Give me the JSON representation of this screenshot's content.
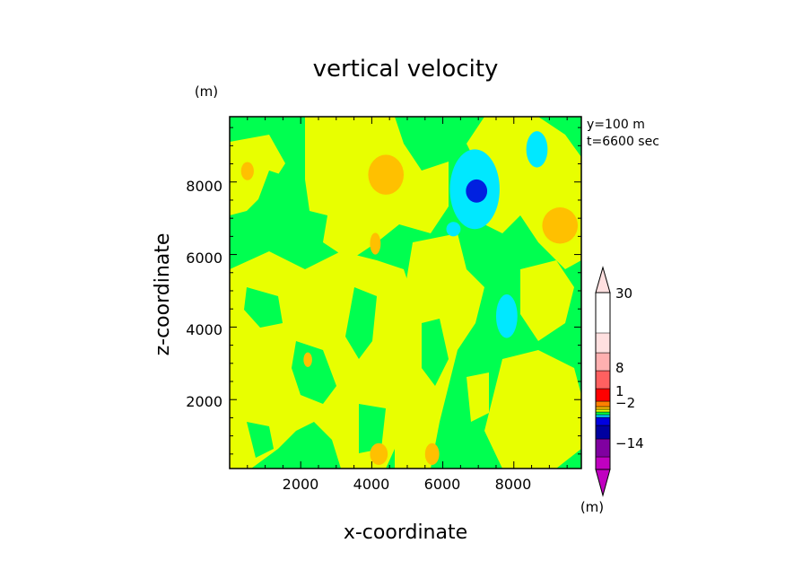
{
  "chart_data": {
    "type": "heatmap",
    "title": "vertical velocity",
    "xlabel": "x-coordinate",
    "ylabel": "z-coordinate",
    "x_unit": "(m)",
    "y_unit": "(m)",
    "annotation_lines": [
      "y=100 m",
      "t=6600 sec"
    ],
    "xlim": [
      0,
      9900
    ],
    "ylim": [
      100,
      9800
    ],
    "x_ticks": [
      "2000",
      "4000",
      "6000",
      "8000"
    ],
    "y_ticks": [
      "2000",
      "4000",
      "6000",
      "8000"
    ],
    "colorbar": {
      "unit": "(m)",
      "labels": [
        "30",
        "8",
        "1",
        "−2",
        "−14"
      ],
      "colors": [
        "#c000c0",
        "#8000a0",
        "#0000a0",
        "#0000e0",
        "#00d0ff",
        "#00ff40",
        "#e0ff00",
        "#ffc000",
        "#ff8000",
        "#ff0000",
        "#ff6060",
        "#ffb0b0",
        "#ffe0e0"
      ]
    },
    "field_colors": {
      "up_weak": "#e8ff00",
      "down_weak": "#00ff50",
      "up_moderate": "#ffc000",
      "down_moderate": "#00e8ff",
      "down_strong": "#0020e0"
    },
    "regions": [
      {
        "level": "up_moderate",
        "center": [
          500,
          8300
        ],
        "radius": [
          180,
          250
        ]
      },
      {
        "level": "up_moderate",
        "center": [
          4400,
          8200
        ],
        "radius": [
          500,
          550
        ]
      },
      {
        "level": "up_moderate",
        "center": [
          9300,
          6800
        ],
        "radius": [
          500,
          500
        ]
      },
      {
        "level": "up_moderate",
        "center": [
          4100,
          6300
        ],
        "radius": [
          150,
          300
        ]
      },
      {
        "level": "up_moderate",
        "center": [
          4200,
          500
        ],
        "radius": [
          250,
          300
        ]
      },
      {
        "level": "up_moderate",
        "center": [
          5700,
          500
        ],
        "radius": [
          200,
          300
        ]
      },
      {
        "level": "up_moderate",
        "center": [
          2200,
          3100
        ],
        "radius": [
          120,
          200
        ]
      },
      {
        "level": "down_moderate",
        "center": [
          6900,
          7800
        ],
        "radius": [
          700,
          1100
        ]
      },
      {
        "level": "down_moderate",
        "center": [
          8650,
          8900
        ],
        "radius": [
          300,
          500
        ]
      },
      {
        "level": "down_moderate",
        "center": [
          7800,
          4300
        ],
        "radius": [
          300,
          600
        ]
      },
      {
        "level": "down_moderate",
        "center": [
          6300,
          6700
        ],
        "radius": [
          200,
          200
        ]
      },
      {
        "level": "down_strong",
        "center": [
          6950,
          7750
        ],
        "radius": [
          300,
          320
        ]
      }
    ]
  }
}
